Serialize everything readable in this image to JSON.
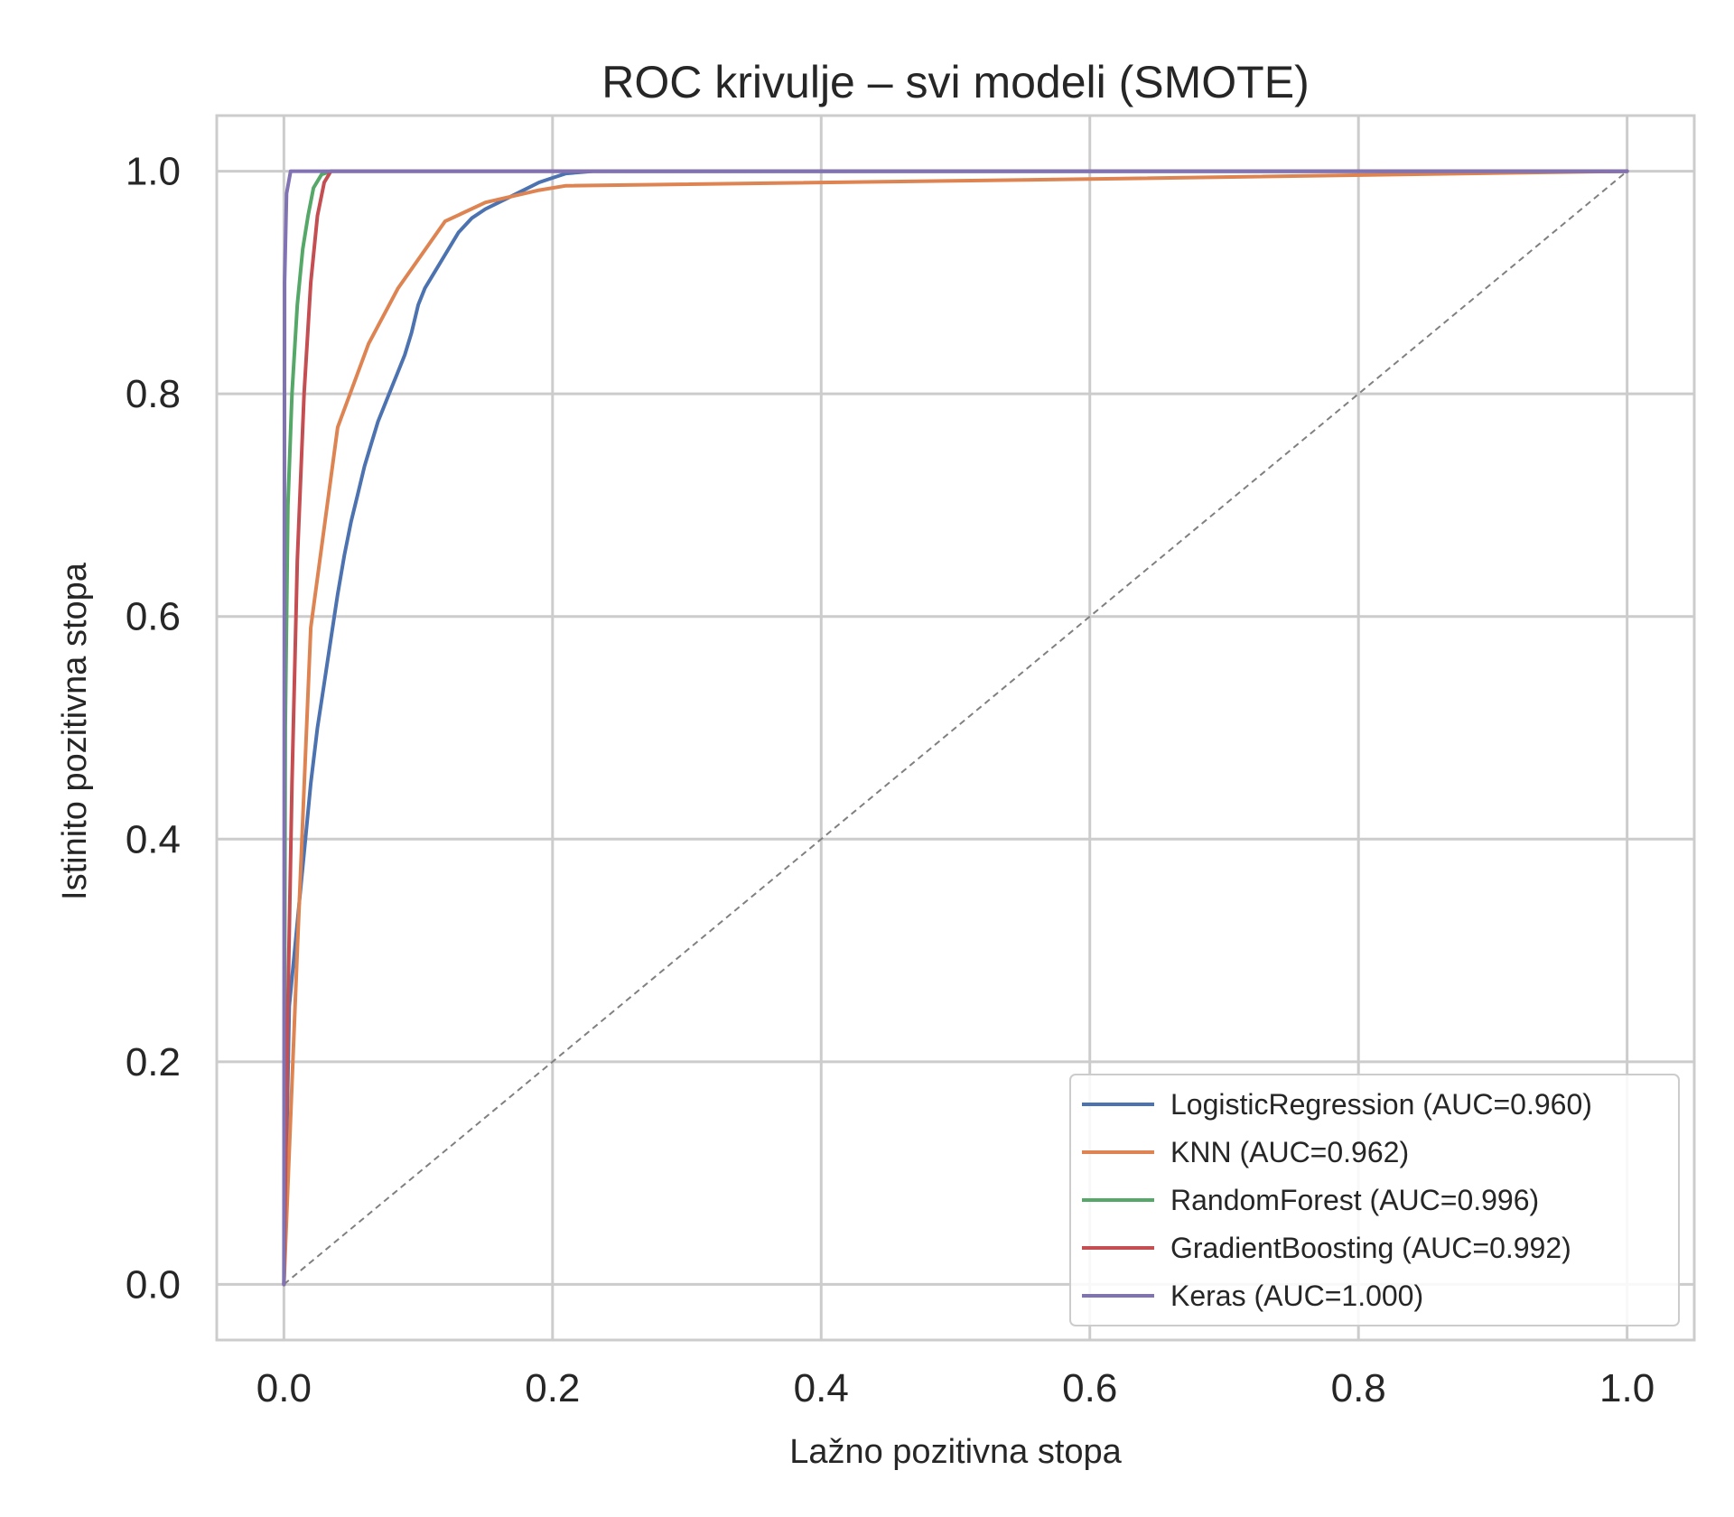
{
  "chart_data": {
    "type": "line",
    "title": "ROC krivulje – svi modeli (SMOTE)",
    "xlabel": "Lažno pozitivna stopa",
    "ylabel": "Istinito pozitivna stopa",
    "xlim": [
      -0.05,
      1.05
    ],
    "ylim": [
      -0.05,
      1.05
    ],
    "xticks": [
      "0.0",
      "0.2",
      "0.4",
      "0.6",
      "0.8",
      "1.0"
    ],
    "yticks": [
      "0.0",
      "0.2",
      "0.4",
      "0.6",
      "0.8",
      "1.0"
    ],
    "xtick_values": [
      0.0,
      0.2,
      0.4,
      0.6,
      0.8,
      1.0
    ],
    "ytick_values": [
      0.0,
      0.2,
      0.4,
      0.6,
      0.8,
      1.0
    ],
    "grid": true,
    "legend_position": "lower right",
    "reference_line": {
      "style": "dashed",
      "color": "#808080",
      "points": [
        [
          0,
          0
        ],
        [
          1,
          1
        ]
      ]
    },
    "series": [
      {
        "name": "LogisticRegression (AUC=0.960)",
        "color": "#4c72b0",
        "points": [
          [
            0,
            0
          ],
          [
            0.004,
            0.25
          ],
          [
            0.008,
            0.3
          ],
          [
            0.012,
            0.35
          ],
          [
            0.016,
            0.4
          ],
          [
            0.02,
            0.45
          ],
          [
            0.025,
            0.5
          ],
          [
            0.03,
            0.54
          ],
          [
            0.035,
            0.58
          ],
          [
            0.04,
            0.62
          ],
          [
            0.045,
            0.655
          ],
          [
            0.05,
            0.685
          ],
          [
            0.055,
            0.71
          ],
          [
            0.06,
            0.735
          ],
          [
            0.065,
            0.755
          ],
          [
            0.07,
            0.775
          ],
          [
            0.075,
            0.79
          ],
          [
            0.08,
            0.805
          ],
          [
            0.085,
            0.82
          ],
          [
            0.09,
            0.835
          ],
          [
            0.095,
            0.855
          ],
          [
            0.1,
            0.88
          ],
          [
            0.105,
            0.895
          ],
          [
            0.11,
            0.905
          ],
          [
            0.12,
            0.925
          ],
          [
            0.13,
            0.945
          ],
          [
            0.14,
            0.958
          ],
          [
            0.15,
            0.966
          ],
          [
            0.16,
            0.972
          ],
          [
            0.17,
            0.978
          ],
          [
            0.18,
            0.984
          ],
          [
            0.19,
            0.99
          ],
          [
            0.2,
            0.994
          ],
          [
            0.21,
            0.998
          ],
          [
            0.23,
            1.0
          ],
          [
            1.0,
            1.0
          ]
        ]
      },
      {
        "name": "KNN (AUC=0.962)",
        "color": "#dd8452",
        "points": [
          [
            0,
            0
          ],
          [
            0.01,
            0.3
          ],
          [
            0.02,
            0.59
          ],
          [
            0.04,
            0.77
          ],
          [
            0.063,
            0.845
          ],
          [
            0.085,
            0.895
          ],
          [
            0.12,
            0.955
          ],
          [
            0.15,
            0.972
          ],
          [
            0.19,
            0.983
          ],
          [
            0.21,
            0.987
          ],
          [
            0.6,
            0.993
          ],
          [
            1.0,
            1.0
          ]
        ]
      },
      {
        "name": "RandomForest (AUC=0.996)",
        "color": "#55a868",
        "points": [
          [
            0,
            0
          ],
          [
            0.001,
            0.5
          ],
          [
            0.003,
            0.7
          ],
          [
            0.006,
            0.8
          ],
          [
            0.01,
            0.88
          ],
          [
            0.014,
            0.93
          ],
          [
            0.018,
            0.96
          ],
          [
            0.022,
            0.985
          ],
          [
            0.028,
            0.997
          ],
          [
            0.035,
            1.0
          ],
          [
            1.0,
            1.0
          ]
        ]
      },
      {
        "name": "GradientBoosting (AUC=0.992)",
        "color": "#c44e52",
        "points": [
          [
            0,
            0
          ],
          [
            0.003,
            0.25
          ],
          [
            0.006,
            0.45
          ],
          [
            0.01,
            0.65
          ],
          [
            0.015,
            0.8
          ],
          [
            0.02,
            0.9
          ],
          [
            0.025,
            0.96
          ],
          [
            0.03,
            0.99
          ],
          [
            0.035,
            1.0
          ],
          [
            1.0,
            1.0
          ]
        ]
      },
      {
        "name": "Keras (AUC=1.000)",
        "color": "#8172b3",
        "points": [
          [
            0,
            0
          ],
          [
            0.0005,
            0.9
          ],
          [
            0.002,
            0.98
          ],
          [
            0.005,
            1.0
          ],
          [
            1.0,
            1.0
          ]
        ]
      }
    ]
  }
}
